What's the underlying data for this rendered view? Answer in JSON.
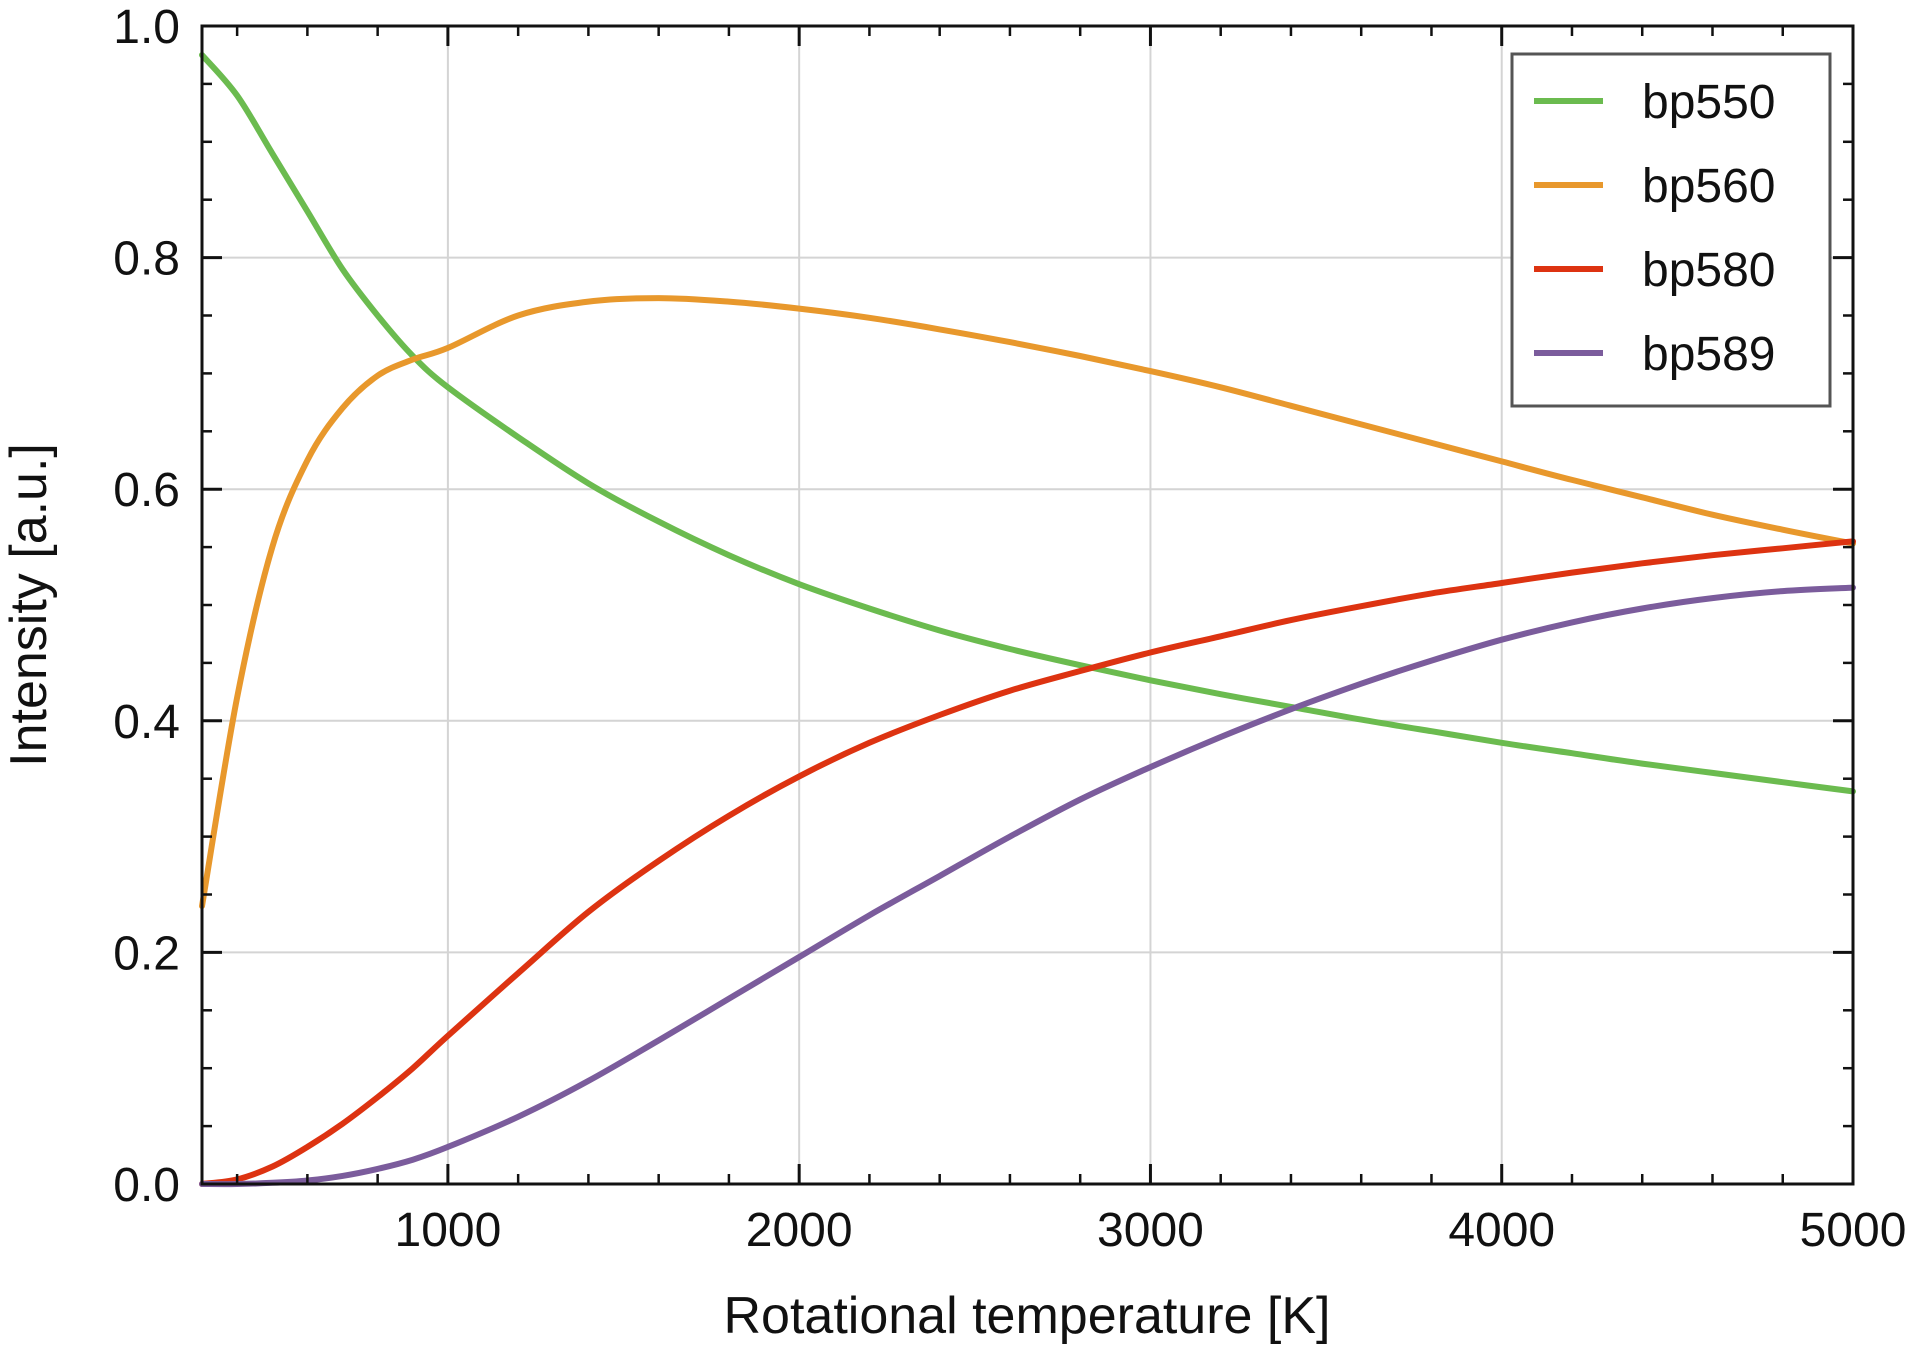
{
  "chart_data": {
    "type": "line",
    "title": "",
    "xlabel": "Rotational temperature [K]",
    "ylabel": "Intensity [a.u.]",
    "xlim": [
      300,
      5000
    ],
    "ylim": [
      0,
      1.0
    ],
    "x_ticks": [
      1000,
      2000,
      3000,
      4000,
      5000
    ],
    "x_tick_labels": [
      "1000",
      "2000",
      "3000",
      "4000",
      "5000"
    ],
    "y_ticks": [
      0,
      0.2,
      0.4,
      0.6,
      0.8,
      1.0
    ],
    "y_tick_labels": [
      "0.0",
      "0.2",
      "0.4",
      "0.6",
      "0.8",
      "1.0"
    ],
    "x_minor_step": 200,
    "y_minor_step": 0.05,
    "grid": true,
    "legend_position": "top-right",
    "x": [
      300,
      400,
      500,
      600,
      700,
      800,
      900,
      1000,
      1200,
      1400,
      1600,
      1800,
      2000,
      2200,
      2400,
      2600,
      2800,
      3000,
      3200,
      3400,
      3600,
      3800,
      4000,
      4200,
      4400,
      4600,
      4800,
      5000
    ],
    "series": [
      {
        "name": "bp550",
        "color": "#6bbb4f",
        "values": [
          0.975,
          0.94,
          0.89,
          0.84,
          0.79,
          0.75,
          0.715,
          0.688,
          0.645,
          0.605,
          0.572,
          0.543,
          0.518,
          0.497,
          0.478,
          0.462,
          0.448,
          0.435,
          0.423,
          0.412,
          0.401,
          0.391,
          0.381,
          0.372,
          0.363,
          0.355,
          0.347,
          0.339
        ]
      },
      {
        "name": "bp560",
        "color": "#e8982c",
        "values": [
          0.24,
          0.42,
          0.55,
          0.625,
          0.67,
          0.698,
          0.712,
          0.722,
          0.75,
          0.762,
          0.765,
          0.762,
          0.756,
          0.748,
          0.738,
          0.727,
          0.715,
          0.702,
          0.688,
          0.672,
          0.656,
          0.64,
          0.624,
          0.608,
          0.593,
          0.578,
          0.565,
          0.553
        ]
      },
      {
        "name": "bp580",
        "color": "#dd3311",
        "values": [
          0.0,
          0.004,
          0.015,
          0.032,
          0.052,
          0.075,
          0.1,
          0.128,
          0.182,
          0.235,
          0.279,
          0.318,
          0.352,
          0.381,
          0.405,
          0.426,
          0.443,
          0.459,
          0.473,
          0.487,
          0.499,
          0.51,
          0.519,
          0.528,
          0.536,
          0.543,
          0.549,
          0.555
        ]
      },
      {
        "name": "bp589",
        "color": "#7b5c9c",
        "values": [
          0.0,
          0.0,
          0.001,
          0.003,
          0.007,
          0.013,
          0.021,
          0.032,
          0.058,
          0.089,
          0.124,
          0.16,
          0.196,
          0.232,
          0.266,
          0.3,
          0.332,
          0.36,
          0.386,
          0.41,
          0.432,
          0.452,
          0.47,
          0.485,
          0.497,
          0.506,
          0.512,
          0.515
        ]
      }
    ]
  }
}
